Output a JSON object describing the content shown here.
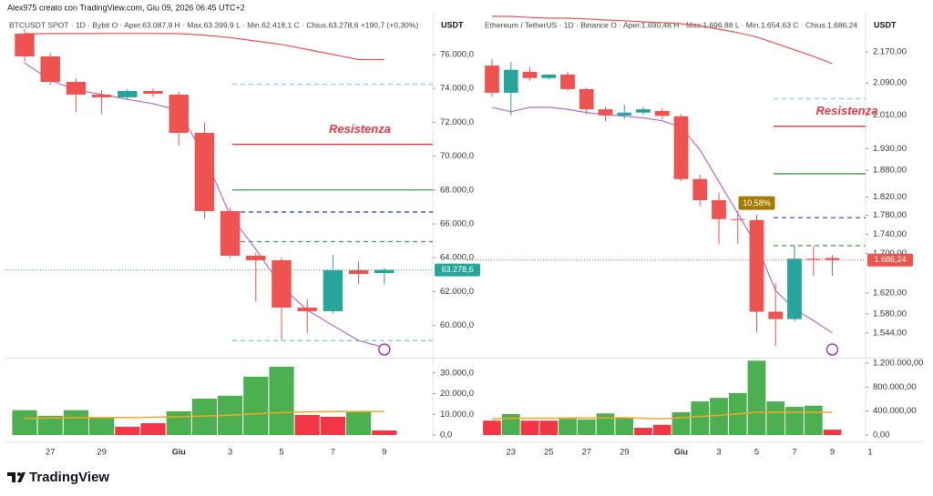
{
  "header": "Alex975 creato con TradingView.com, Giu 09, 2026 06:45 UTC+2",
  "footer": "TradingView",
  "chart_data": [
    {
      "type": "candlestick",
      "title": "BTCUSDT SPOT · 1D · Bybit  O · Aper.63.087,9  H · Max.63.399,9  L · Min.62.418,1  C · Chius.63.278,6  +190,7 (+0,30%)",
      "unit": "USDT",
      "categories": [
        null,
        "27",
        null,
        "29",
        null,
        null,
        "Giu",
        null,
        "3",
        null,
        "5",
        null,
        "7",
        null,
        "9"
      ],
      "open": [
        77236,
        75892,
        74387,
        73635,
        73473,
        73850,
        73635,
        71377,
        66753,
        64119,
        63850,
        61055,
        60840,
        63259,
        63087.9
      ],
      "high": [
        77500,
        76100,
        74600,
        73900,
        73950,
        74000,
        73800,
        72000,
        66970,
        64300,
        64000,
        61540,
        64170,
        63800,
        63399.9
      ],
      "low": [
        75600,
        74200,
        72600,
        72500,
        73300,
        73500,
        70600,
        66300,
        64000,
        61430,
        59120,
        59550,
        60700,
        62450,
        62418.1
      ],
      "close": [
        75892,
        74387,
        73635,
        73473,
        73850,
        73688,
        71377,
        66753,
        64119,
        63850,
        61055,
        60840,
        63259,
        63044,
        63278.6
      ],
      "up_color": "#26a69a",
      "down_color": "#ef5350",
      "log_scale": false,
      "ylim": [
        58150,
        78470
      ],
      "yticks": [
        {
          "value": 60000,
          "label": "60.000,0"
        },
        {
          "value": 62000,
          "label": "62.000,0"
        },
        {
          "value": 64000,
          "label": "64.000,0"
        },
        {
          "value": 66000,
          "label": "66.000,0"
        },
        {
          "value": 68000,
          "label": "68.000,0"
        },
        {
          "value": 70000,
          "label": "70.000,0"
        },
        {
          "value": 72000,
          "label": "72.000,0"
        },
        {
          "value": 74000,
          "label": "74.000,0"
        },
        {
          "value": 76000,
          "label": "76.000,0"
        }
      ],
      "last_price": {
        "value": 63278.6,
        "label": "63.278,6",
        "color": "#26a69a"
      },
      "lines": [
        {
          "value": 74250,
          "color": "#7fd1d8",
          "dash": true
        },
        {
          "value": 70700,
          "color": "#f23645",
          "dash": false
        },
        {
          "value": 68000,
          "color": "#43a047",
          "dash": false
        },
        {
          "value": 66700,
          "color": "#3f51b5",
          "dash": true
        },
        {
          "value": 64950,
          "color": "#43a047",
          "dash": true
        },
        {
          "value": 59100,
          "color": "#7fd1d8",
          "dash": true
        }
      ],
      "annotation": {
        "text": "Resistenza",
        "value": 70700,
        "color": "#f23645"
      },
      "moving_averages": [
        {
          "color": "#f05252",
          "values": [
            77236,
            77236,
            77240,
            77250,
            77250,
            77250,
            77236,
            77150,
            77000,
            76800,
            76600,
            76300,
            76000,
            75700,
            75704
          ]
        },
        {
          "color": "#b36ad4",
          "values": [
            75500,
            74500,
            73900,
            73650,
            73350,
            73100,
            72700,
            70000,
            66500,
            64500,
            62300,
            60900,
            60000,
            59100,
            58700
          ]
        }
      ],
      "volume": {
        "values": [
          12000,
          9300,
          12000,
          8800,
          4000,
          5700,
          11500,
          17600,
          19000,
          28200,
          33000,
          9700,
          8800,
          11500,
          2200
        ],
        "colors": [
          "#4caf50",
          "#4caf50",
          "#4caf50",
          "#4caf50",
          "#f23645",
          "#f23645",
          "#4caf50",
          "#4caf50",
          "#4caf50",
          "#4caf50",
          "#4caf50",
          "#f23645",
          "#f23645",
          "#4caf50",
          "#f23645"
        ],
        "ylim": [
          0,
          36500
        ],
        "yticks": [
          {
            "value": 0,
            "label": "0,0"
          },
          {
            "value": 10000,
            "label": "10.000,0"
          },
          {
            "value": 20000,
            "label": "20.000,0"
          },
          {
            "value": 30000,
            "label": "30.000,0"
          }
        ],
        "ma": {
          "color": "#f5a623",
          "values": [
            8000,
            8200,
            8400,
            8500,
            8500,
            8600,
            8800,
            9200,
            9600,
            10200,
            10800,
            11200,
            11300,
            11400,
            11300
          ]
        }
      }
    },
    {
      "type": "candlestick",
      "title": "Ethereum / TetherUS · 1D · Binance  O · Aper.1.690,48  H · Max.1.696,88  L · Min.1.654,63  C · Chius.1.686,24",
      "unit": "USDT",
      "categories": [
        null,
        "23",
        null,
        "25",
        null,
        "27",
        null,
        "29",
        null,
        null,
        "Giu",
        null,
        "3",
        null,
        "5",
        null,
        "7",
        null,
        "9",
        null,
        "1"
      ],
      "open": [
        2134,
        2065,
        2118,
        2102,
        2111,
        2074,
        2024,
        2009,
        2016,
        2020,
        2007,
        1860,
        1813,
        1772,
        1770,
        1584,
        1570,
        1689,
        1690.48,
        null,
        null
      ],
      "high": [
        2150,
        2144,
        2130,
        2112,
        2118,
        2078,
        2030,
        2035,
        2030,
        2026,
        2012,
        1870,
        1830,
        1790,
        1782,
        1640,
        1717,
        1715,
        1696.88,
        null,
        null
      ],
      "low": [
        2055,
        2009,
        2095,
        2098,
        2070,
        2012,
        1995,
        2000,
        2010,
        2000,
        1855,
        1800,
        1720,
        1720,
        1545,
        1520,
        1565,
        1655,
        1654.63,
        null,
        null
      ],
      "close": [
        2065,
        2123,
        2102,
        2111,
        2074,
        2024,
        2009,
        2016,
        2024,
        2008,
        1860,
        1813,
        1772,
        1770,
        1584,
        1570,
        1689,
        1687,
        1686.24,
        null,
        null
      ],
      "up_color": "#26a69a",
      "down_color": "#ef5350",
      "log_scale": true,
      "ylim": [
        1500,
        2275
      ],
      "yticks": [
        {
          "value": 1544,
          "label": "1.544,00"
        },
        {
          "value": 1580,
          "label": "1.580,00"
        },
        {
          "value": 1620,
          "label": "1.620,00"
        },
        {
          "value": 1700,
          "label": "1.700,00"
        },
        {
          "value": 1740,
          "label": "1.740,00"
        },
        {
          "value": 1780,
          "label": "1.780,00"
        },
        {
          "value": 1820,
          "label": "1.820,00"
        },
        {
          "value": 1880,
          "label": "1.880,00"
        },
        {
          "value": 1930,
          "label": "1.930,00"
        },
        {
          "value": 2010,
          "label": "2.010,00"
        },
        {
          "value": 2090,
          "label": "2.090,00"
        },
        {
          "value": 2170,
          "label": "2.170,00"
        }
      ],
      "last_price": {
        "value": 1686.24,
        "label": "1.686,24",
        "color": "#ef5350"
      },
      "lines": [
        {
          "value": 2050,
          "color": "#7fd1d8",
          "dash": true
        },
        {
          "value": 1983,
          "color": "#f23645",
          "dash": false
        },
        {
          "value": 1872,
          "color": "#43a047",
          "dash": false
        },
        {
          "value": 1775,
          "color": "#3f51b5",
          "dash": true
        },
        {
          "value": 1716,
          "color": "#43a047",
          "dash": true
        }
      ],
      "annotation": {
        "text": "Resistenza",
        "value": 1983,
        "color": "#f23645"
      },
      "callout": {
        "text": "10.58%",
        "category": "5",
        "color": "#a67c00"
      },
      "moving_averages": [
        {
          "color": "#f05252",
          "values": [
            2265,
            2265,
            2262,
            2260,
            2260,
            2258,
            2255,
            2253,
            2250,
            2248,
            2245,
            2240,
            2230,
            2221,
            2209,
            2192,
            2175,
            2158,
            2139,
            null,
            null
          ]
        },
        {
          "color": "#b36ad4",
          "values": [
            2029,
            2018,
            2029,
            2029,
            2024,
            2016,
            2011,
            2007,
            2003,
            1996,
            1981,
            1927,
            1854,
            1784,
            1717,
            1625,
            1589,
            1567,
            1544,
            null,
            null
          ]
        }
      ],
      "volume": {
        "values": [
          240000,
          350000,
          240000,
          240000,
          270000,
          260000,
          360000,
          290000,
          120000,
          170000,
          380000,
          560000,
          620000,
          700000,
          1240000,
          560000,
          470000,
          490000,
          90000,
          null,
          null
        ],
        "colors": [
          "#f23645",
          "#4caf50",
          "#f23645",
          "#f23645",
          "#4caf50",
          "#4caf50",
          "#4caf50",
          "#4caf50",
          "#f23645",
          "#f23645",
          "#4caf50",
          "#4caf50",
          "#4caf50",
          "#4caf50",
          "#4caf50",
          "#4caf50",
          "#4caf50",
          "#4caf50",
          "#f23645",
          null,
          null
        ],
        "ylim": [
          0,
          1260000
        ],
        "yticks": [
          {
            "value": 0,
            "label": "0,00"
          },
          {
            "value": 400000,
            "label": "400.000,00"
          },
          {
            "value": 800000,
            "label": "800.000,00"
          },
          {
            "value": 1200000,
            "label": "1.200.000,00"
          }
        ],
        "ma": {
          "color": "#f5a623",
          "values": [
            270000,
            280000,
            280000,
            280000,
            285000,
            285000,
            285000,
            290000,
            280000,
            270000,
            290000,
            310000,
            330000,
            350000,
            380000,
            380000,
            380000,
            380000,
            380000,
            null,
            null
          ]
        }
      }
    }
  ]
}
